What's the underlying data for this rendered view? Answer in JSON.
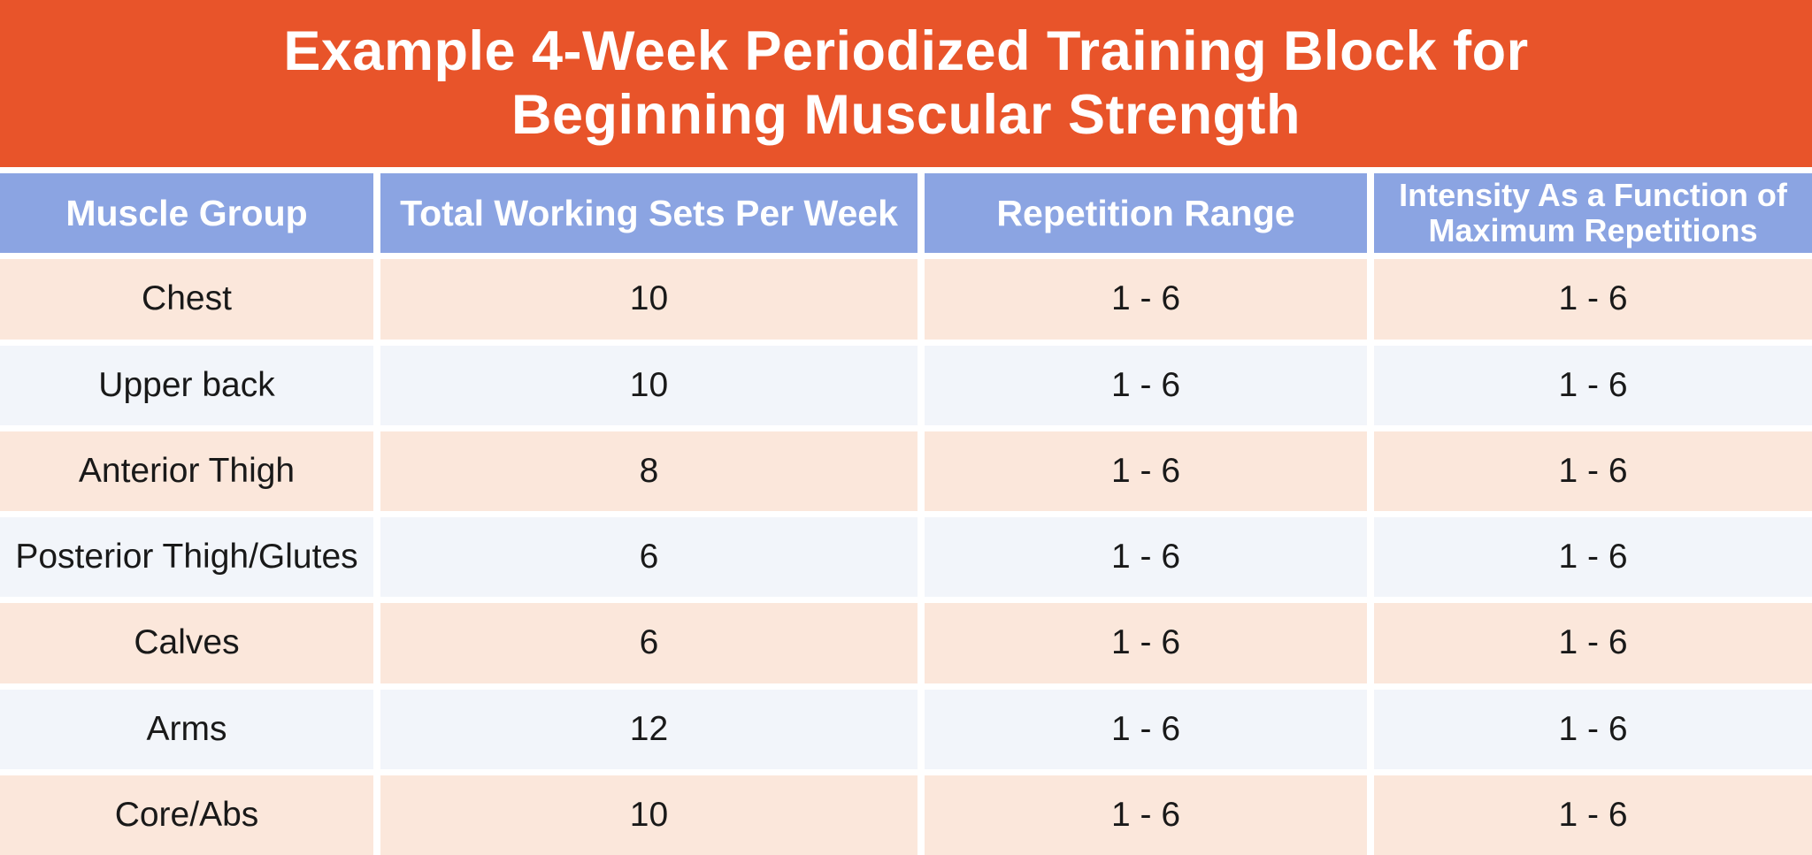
{
  "banner": {
    "title_line1": "Example 4-Week Periodized Training Block for",
    "title_line2": "Beginning Muscular Strength"
  },
  "chart_data": {
    "type": "table",
    "title": "Example 4-Week Periodized Training Block for Beginning Muscular Strength",
    "columns": [
      "Muscle Group",
      "Total Working Sets Per Week",
      "Repetition Range",
      "Intensity As a Function of Maximum Repetitions"
    ],
    "rows": [
      [
        "Chest",
        "10",
        "1 - 6",
        "1 - 6"
      ],
      [
        "Upper back",
        "10",
        "1 - 6",
        "1 - 6"
      ],
      [
        "Anterior Thigh",
        "8",
        "1 - 6",
        "1 - 6"
      ],
      [
        "Posterior Thigh/Glutes",
        "6",
        "1 - 6",
        "1 - 6"
      ],
      [
        "Calves",
        "6",
        "1 - 6",
        "1 - 6"
      ],
      [
        "Arms",
        "12",
        "1 - 6",
        "1 - 6"
      ],
      [
        "Core/Abs",
        "10",
        "1 - 6",
        "1 - 6"
      ]
    ]
  },
  "colors": {
    "banner-bg": "#E8542A",
    "banner-text": "#FFFFFF",
    "header-bg": "#8BA4E2",
    "header-text": "#FFFFFF",
    "row-peach": "#FBE7DB",
    "row-blue": "#F2F5FA",
    "cell-text": "#191919",
    "gap": "#FFFFFF"
  }
}
